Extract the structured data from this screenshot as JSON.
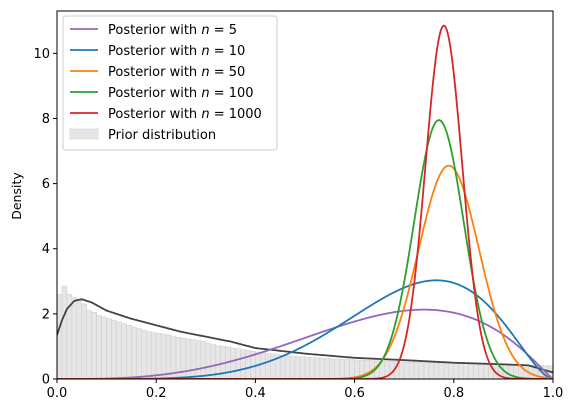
{
  "chart_data": {
    "type": "line",
    "ylabel": "Density",
    "xlabel": "",
    "xlim": [
      0,
      1
    ],
    "ylim": [
      0,
      11.3
    ],
    "xticks": [
      "0.0",
      "0.2",
      "0.4",
      "0.6",
      "0.8",
      "1.0"
    ],
    "yticks": [
      "0",
      "2",
      "4",
      "6",
      "8",
      "10"
    ],
    "legend_position": "top-left",
    "series": [
      {
        "name_prefix": "Posterior with ",
        "name_math": "n",
        "name_suffix": " = 5",
        "color": "#9467bd",
        "mode": 0.74,
        "peak": 2.13,
        "sd": 0.19,
        "shape": "beta"
      },
      {
        "name_prefix": "Posterior with ",
        "name_math": "n",
        "name_suffix": " = 10",
        "color": "#1f77b4",
        "mode": 0.765,
        "peak": 3.03,
        "sd": 0.13,
        "shape": "beta"
      },
      {
        "name_prefix": "Posterior with ",
        "name_math": "n",
        "name_suffix": " = 50",
        "color": "#ff7f0e",
        "mode": 0.79,
        "peak": 6.55,
        "sd": 0.061,
        "shape": "gauss"
      },
      {
        "name_prefix": "Posterior with ",
        "name_math": "n",
        "name_suffix": " = 100",
        "color": "#2ca02c",
        "mode": 0.77,
        "peak": 7.95,
        "sd": 0.05,
        "shape": "gauss"
      },
      {
        "name_prefix": "Posterior with ",
        "name_math": "n",
        "name_suffix": " = 1000",
        "color": "#d62728",
        "mode": 0.78,
        "peak": 10.85,
        "sd": 0.037,
        "shape": "gauss"
      }
    ],
    "prior": {
      "name": "Prior distribution",
      "hist_color": "#e6e6e6",
      "kde_color": "#444444",
      "kde_points": [
        [
          0.0,
          1.35
        ],
        [
          0.01,
          1.8
        ],
        [
          0.02,
          2.15
        ],
        [
          0.035,
          2.4
        ],
        [
          0.05,
          2.45
        ],
        [
          0.07,
          2.35
        ],
        [
          0.1,
          2.1
        ],
        [
          0.15,
          1.85
        ],
        [
          0.2,
          1.65
        ],
        [
          0.25,
          1.45
        ],
        [
          0.3,
          1.3
        ],
        [
          0.35,
          1.15
        ],
        [
          0.4,
          0.95
        ],
        [
          0.5,
          0.78
        ],
        [
          0.6,
          0.65
        ],
        [
          0.7,
          0.58
        ],
        [
          0.8,
          0.5
        ],
        [
          0.9,
          0.45
        ],
        [
          0.95,
          0.42
        ],
        [
          1.0,
          0.2
        ]
      ],
      "hist_bins": [
        2.6,
        2.85,
        2.6,
        2.5,
        2.45,
        2.3,
        2.1,
        2.05,
        1.95,
        1.9,
        1.85,
        1.8,
        1.75,
        1.7,
        1.65,
        1.6,
        1.55,
        1.5,
        1.45,
        1.42,
        1.4,
        1.38,
        1.35,
        1.3,
        1.28,
        1.25,
        1.22,
        1.2,
        1.18,
        1.15,
        1.1,
        1.05,
        1.02,
        1.0,
        0.98,
        0.95,
        0.93,
        0.9,
        0.88,
        0.85,
        0.83,
        0.8,
        0.78,
        0.77,
        0.75,
        0.73,
        0.72,
        0.7,
        0.69,
        0.68,
        0.67,
        0.66,
        0.65,
        0.64,
        0.63,
        0.62,
        0.61,
        0.6,
        0.6,
        0.59,
        0.58,
        0.58,
        0.57,
        0.56,
        0.56,
        0.55,
        0.55,
        0.54,
        0.54,
        0.53,
        0.52,
        0.52,
        0.51,
        0.51,
        0.5,
        0.5,
        0.5,
        0.49,
        0.49,
        0.48,
        0.48,
        0.47,
        0.47,
        0.47,
        0.46,
        0.46,
        0.45,
        0.45,
        0.45,
        0.44,
        0.44,
        0.44,
        0.43,
        0.43,
        0.43,
        0.42,
        0.42,
        0.42,
        0.41,
        0.4
      ]
    }
  }
}
